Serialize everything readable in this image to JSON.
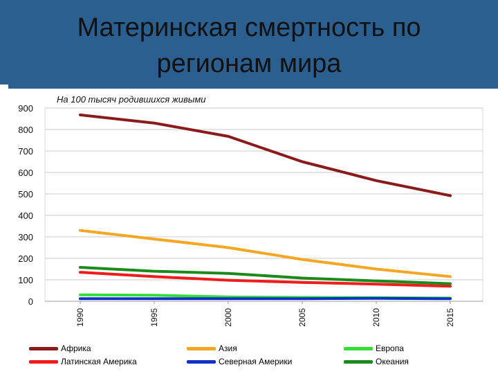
{
  "slide": {
    "title": "Материнская смертность по\nрегионам мира",
    "colors": {
      "title_band": "#2b5f8f"
    }
  },
  "chart_data": {
    "type": "line",
    "subtitle": "На 100 тысяч родившихся живыми",
    "x": [
      1990,
      1995,
      2000,
      2005,
      2010,
      2015
    ],
    "x_tick_labels": [
      "1990",
      "1995",
      "2000",
      "2005",
      "2010",
      "2015"
    ],
    "y_ticks": [
      0,
      100,
      200,
      300,
      400,
      500,
      600,
      700,
      800,
      900
    ],
    "ylim": [
      0,
      900
    ],
    "grid": true,
    "legend_position": "bottom",
    "series": [
      {
        "name": "Африка",
        "color": "#8b1a1a",
        "values": [
          868,
          830,
          768,
          650,
          562,
          492
        ]
      },
      {
        "name": "Азия",
        "color": "#f5a623",
        "values": [
          330,
          290,
          250,
          195,
          150,
          115
        ]
      },
      {
        "name": "Европа",
        "color": "#33dd33",
        "values": [
          30,
          28,
          20,
          18,
          17,
          15
        ]
      },
      {
        "name": "Латинская Америка",
        "color": "#ee1c1c",
        "values": [
          135,
          115,
          98,
          88,
          80,
          70
        ]
      },
      {
        "name": "Северная Америки",
        "color": "#1030c8",
        "values": [
          12,
          12,
          12,
          12,
          14,
          12
        ]
      },
      {
        "name": "Океания",
        "color": "#1a8a1a",
        "values": [
          158,
          140,
          130,
          108,
          95,
          82
        ]
      }
    ]
  }
}
